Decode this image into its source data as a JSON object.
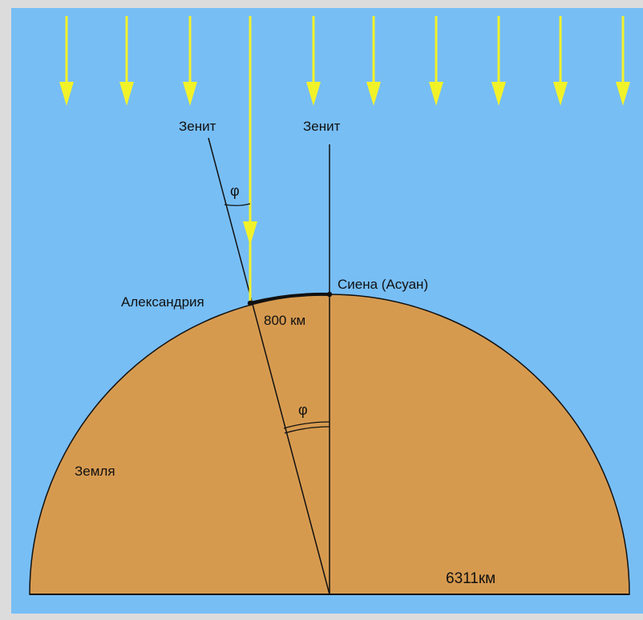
{
  "colors": {
    "frame": "#dcdcdc",
    "sky": "#77bef5",
    "earth": "#d69a4f",
    "ray": "#f2f229",
    "line": "#111111"
  },
  "labels": {
    "zenith_left": "Зенит",
    "zenith_right": "Зенит",
    "phi_top": "φ",
    "phi_center": "φ",
    "alexandria": "Александрия",
    "syene": "Сиена (Асуан)",
    "arc_distance": "800 км",
    "earth": "Земля",
    "radius": "6311км"
  },
  "icons": {
    "sun_ray": "down-arrow-icon"
  },
  "sun_rays_count": 10
}
